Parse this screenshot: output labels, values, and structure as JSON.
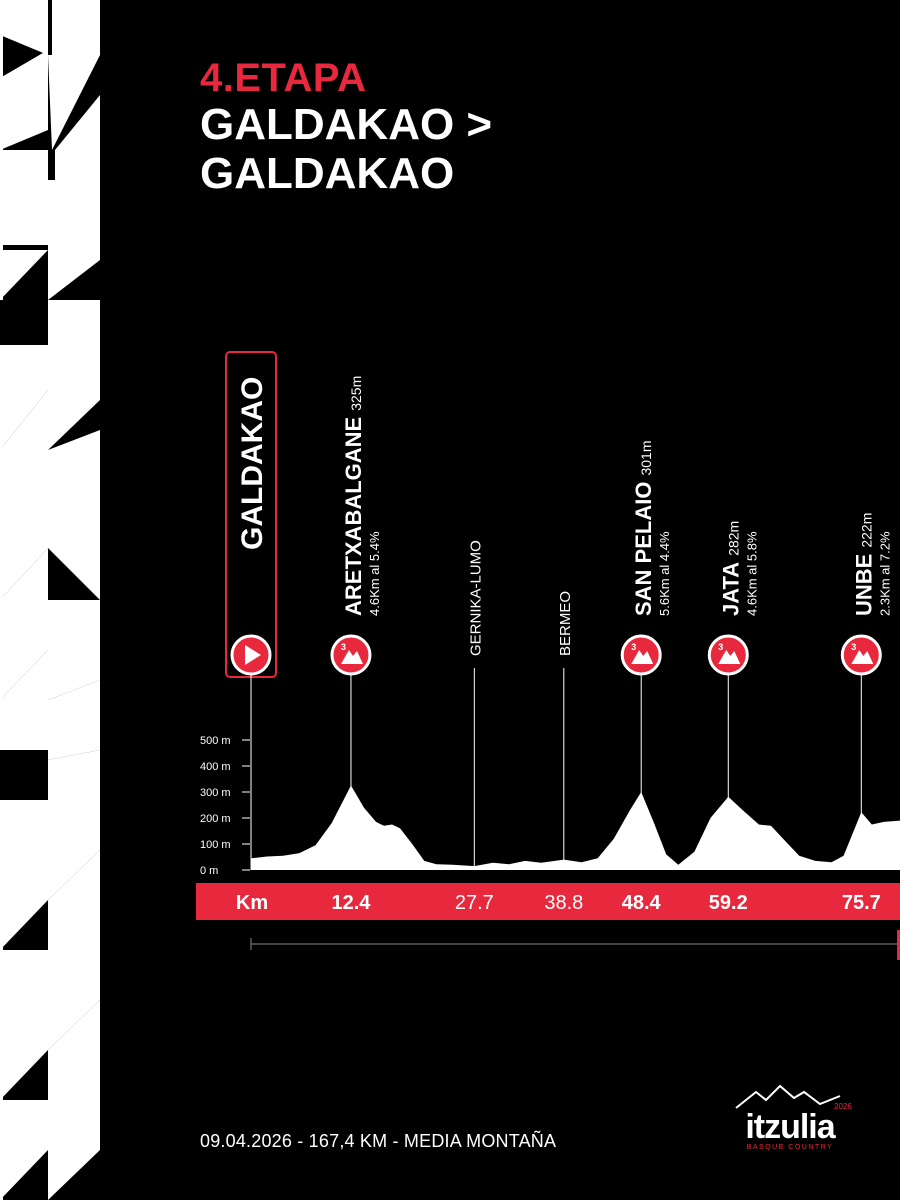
{
  "header": {
    "stage": "4.ETAPA",
    "route_line1": "GALDAKAO >",
    "route_line2": "GALDAKAO"
  },
  "footer": {
    "info": "09.04.2026 - 167,4 KM - MEDIA MONTAÑA"
  },
  "logo": {
    "wordmark": "itzulia",
    "year": "2026",
    "tagline": "BASQUE COUNTRY"
  },
  "colors": {
    "accent": "#e8283c",
    "background": "#000000",
    "foreground": "#ffffff"
  },
  "chart_data": {
    "type": "area",
    "title": "",
    "xlabel": "Km",
    "ylabel": "",
    "yticks": [
      "500 m",
      "400 m",
      "300 m",
      "200 m",
      "100 m",
      "0 m"
    ],
    "ylim": [
      0,
      500
    ],
    "xlim": [
      0,
      80.5
    ],
    "start": {
      "name": "GALDAKAO",
      "km": 0
    },
    "waypoints": [
      {
        "name": "ARETXABALGANE",
        "km": 12.4,
        "km_label": "12.4",
        "altitude": "325m",
        "detail": "4.6Km al 5.4%",
        "category": "3",
        "type": "climb"
      },
      {
        "name": "GERNIKA-LUMO",
        "km": 27.7,
        "km_label": "27.7",
        "type": "town"
      },
      {
        "name": "BERMEO",
        "km": 38.8,
        "km_label": "38.8",
        "type": "town"
      },
      {
        "name": "SAN PELAIO",
        "km": 48.4,
        "km_label": "48.4",
        "altitude": "301m",
        "detail": "5.6Km al 4.4%",
        "category": "3",
        "type": "climb"
      },
      {
        "name": "JATA",
        "km": 59.2,
        "km_label": "59.2",
        "altitude": "282m",
        "detail": "4.6Km al 5.8%",
        "category": "3",
        "type": "climb"
      },
      {
        "name": "UNBE",
        "km": 75.7,
        "km_label": "75.7",
        "altitude": "222m",
        "detail": "2.3Km al 7.2%",
        "category": "3",
        "type": "climb"
      }
    ],
    "profile": [
      [
        0,
        45
      ],
      [
        2,
        52
      ],
      [
        4,
        55
      ],
      [
        6,
        65
      ],
      [
        8,
        95
      ],
      [
        10,
        180
      ],
      [
        12.4,
        325
      ],
      [
        14,
        240
      ],
      [
        15.5,
        185
      ],
      [
        16.5,
        170
      ],
      [
        17.5,
        175
      ],
      [
        18.5,
        160
      ],
      [
        20,
        100
      ],
      [
        21.5,
        35
      ],
      [
        23,
        22
      ],
      [
        25,
        20
      ],
      [
        27.7,
        15
      ],
      [
        30,
        28
      ],
      [
        32,
        22
      ],
      [
        34,
        35
      ],
      [
        36,
        28
      ],
      [
        38.8,
        40
      ],
      [
        41,
        30
      ],
      [
        43,
        45
      ],
      [
        45,
        120
      ],
      [
        47,
        230
      ],
      [
        48.4,
        300
      ],
      [
        50,
        180
      ],
      [
        51.5,
        60
      ],
      [
        53,
        20
      ],
      [
        55,
        70
      ],
      [
        57,
        200
      ],
      [
        59.2,
        282
      ],
      [
        61,
        230
      ],
      [
        63,
        175
      ],
      [
        64.5,
        170
      ],
      [
        66,
        120
      ],
      [
        68,
        55
      ],
      [
        70,
        35
      ],
      [
        72,
        30
      ],
      [
        73.5,
        55
      ],
      [
        75.7,
        222
      ],
      [
        77,
        175
      ],
      [
        78.5,
        185
      ],
      [
        80.5,
        190
      ]
    ],
    "grid": false,
    "legend": "none"
  }
}
